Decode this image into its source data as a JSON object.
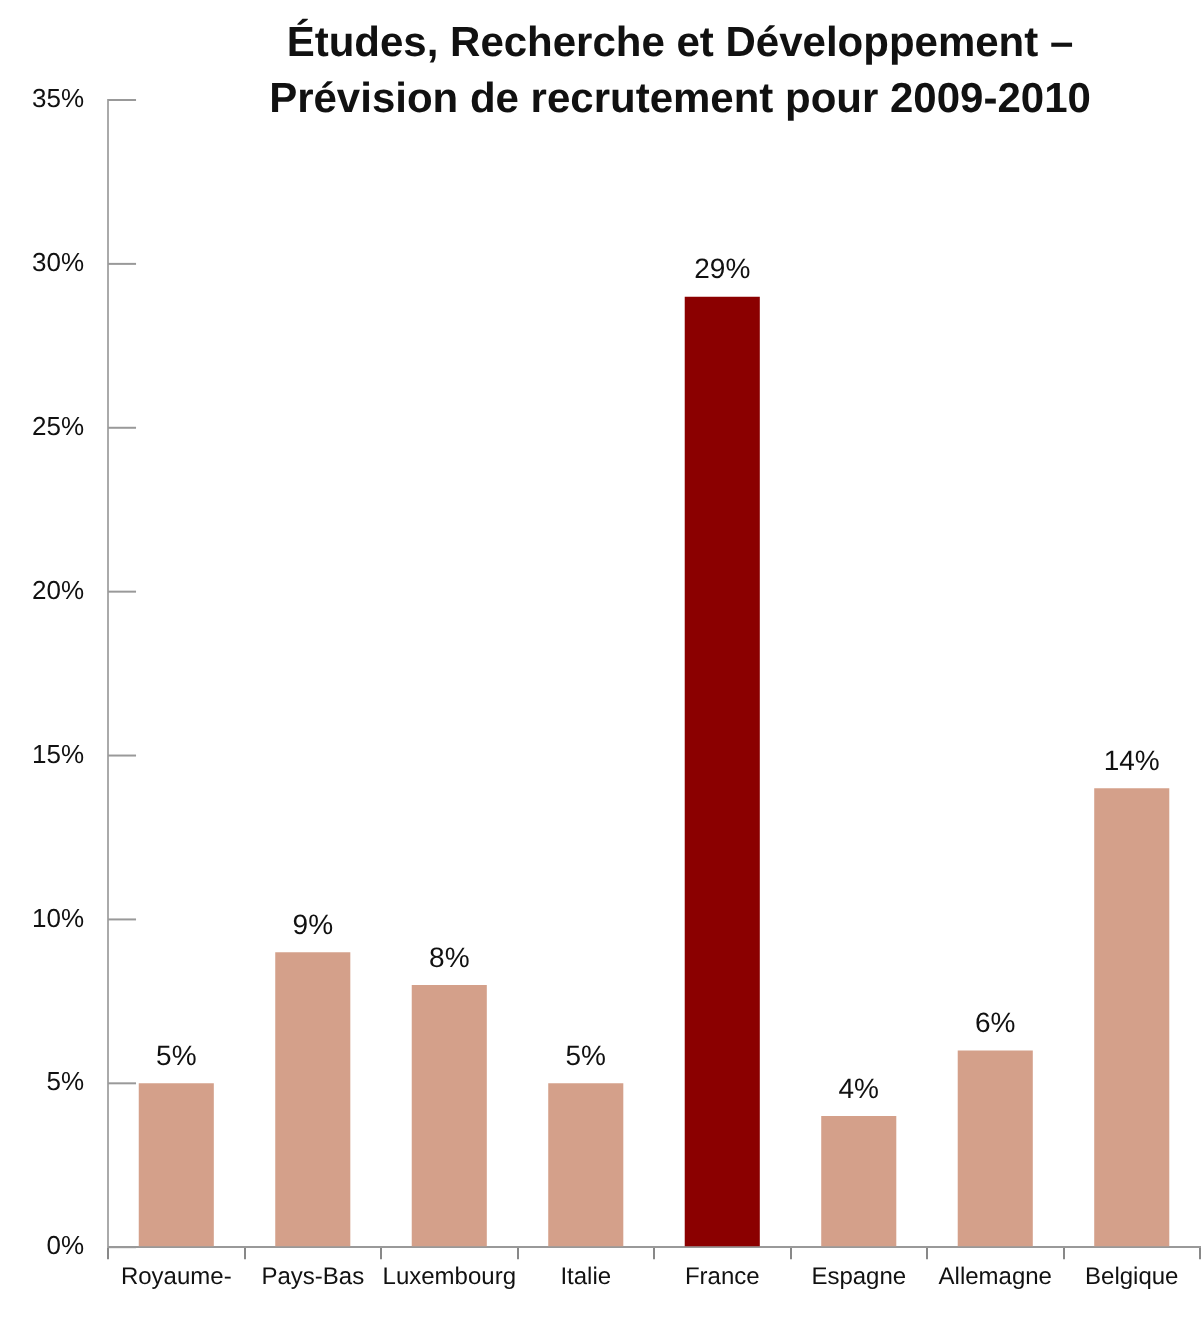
{
  "chart_data": {
    "type": "bar",
    "title": "Études, Recherche et Développement – Prévision de recrutement pour 2009-2010",
    "categories": [
      "Royaume-",
      "Pays-Bas",
      "Luxembourg",
      "Italie",
      "France",
      "Espagne",
      "Allemagne",
      "Belgique"
    ],
    "values": [
      5,
      9,
      8,
      5,
      29,
      4,
      6,
      14
    ],
    "colors": [
      "#d4a08a",
      "#d4a08a",
      "#d4a08a",
      "#d4a08a",
      "#8b0000",
      "#d4a08a",
      "#d4a08a",
      "#d4a08a"
    ],
    "value_labels": [
      "5%",
      "9%",
      "8%",
      "5%",
      "29%",
      "4%",
      "6%",
      "14%"
    ],
    "ylim": [
      0,
      35
    ],
    "yticks": [
      {
        "value": 0,
        "label": "0%"
      },
      {
        "value": 5,
        "label": "5%"
      },
      {
        "value": 10,
        "label": "10%"
      },
      {
        "value": 15,
        "label": "15%"
      },
      {
        "value": 20,
        "label": "20%"
      },
      {
        "value": 25,
        "label": "25%"
      },
      {
        "value": 30,
        "label": "30%"
      },
      {
        "value": 35,
        "label": "35%"
      }
    ],
    "grid": false,
    "legend": false
  }
}
